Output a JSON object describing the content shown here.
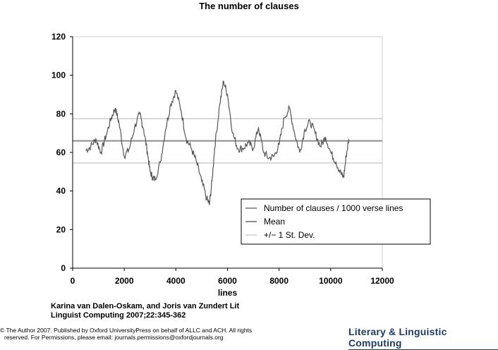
{
  "chart_data": {
    "type": "line",
    "title": "The number of clauses",
    "xlabel": "lines",
    "ylabel": "",
    "xlim": [
      0,
      12000
    ],
    "ylim": [
      0,
      120
    ],
    "xticks": [
      "0",
      "2000",
      "4000",
      "6000",
      "8000",
      "10000",
      "12000"
    ],
    "yticks": [
      "0",
      "20",
      "40",
      "60",
      "80",
      "100",
      "120"
    ],
    "grid": false,
    "legend": "bottom-right inside",
    "series": [
      {
        "name": "Number of clauses / 1000 verse lines",
        "color": "#555555",
        "x": [
          500,
          700,
          900,
          1100,
          1300,
          1500,
          1650,
          1800,
          2000,
          2200,
          2400,
          2600,
          2750,
          2900,
          3000,
          3100,
          3200,
          3400,
          3600,
          3800,
          4000,
          4200,
          4400,
          4600,
          4800,
          5000,
          5200,
          5300,
          5400,
          5500,
          5700,
          5850,
          6000,
          6200,
          6400,
          6600,
          6800,
          7000,
          7200,
          7400,
          7600,
          7800,
          8000,
          8200,
          8400,
          8600,
          8800,
          9000,
          9200,
          9400,
          9600,
          9800,
          10000,
          10200,
          10400,
          10500,
          10600,
          10700
        ],
        "y": [
          61,
          63,
          67,
          60,
          69,
          78,
          83,
          75,
          58,
          62,
          73,
          80,
          72,
          60,
          50,
          47,
          46,
          55,
          72,
          85,
          92,
          82,
          67,
          62,
          55,
          45,
          36,
          33,
          45,
          62,
          85,
          97,
          90,
          70,
          62,
          62,
          65,
          62,
          73,
          60,
          57,
          58,
          64,
          78,
          83,
          70,
          60,
          72,
          76,
          70,
          63,
          68,
          60,
          55,
          49,
          47,
          58,
          67
        ]
      },
      {
        "name": "Mean",
        "color": "#8c8c8c",
        "x": [
          0,
          12000
        ],
        "y": [
          66,
          66
        ]
      },
      {
        "name": "+/− 1 St. Dev.",
        "color": "#b5b5b5",
        "bands": [
          77.5,
          54.5
        ]
      }
    ],
    "legend_entries": [
      "Number of clauses / 1000 verse lines",
      "Mean",
      "+/− 1 St. Dev."
    ]
  },
  "citation": {
    "line1": "Karina van Dalen-Oskam, and Joris van Zundert Lit",
    "line2": "Linguist Computing 2007;22:345-362"
  },
  "copyright": {
    "line1": "© The Author 2007. Published by Oxford UniversityPress on behalf of ALLC and ACH. All rights",
    "line2": "reserved. For Permissions, please email: journals.permissions@oxfordjournals.org"
  },
  "journal": "Literary & Linguistic Computing"
}
